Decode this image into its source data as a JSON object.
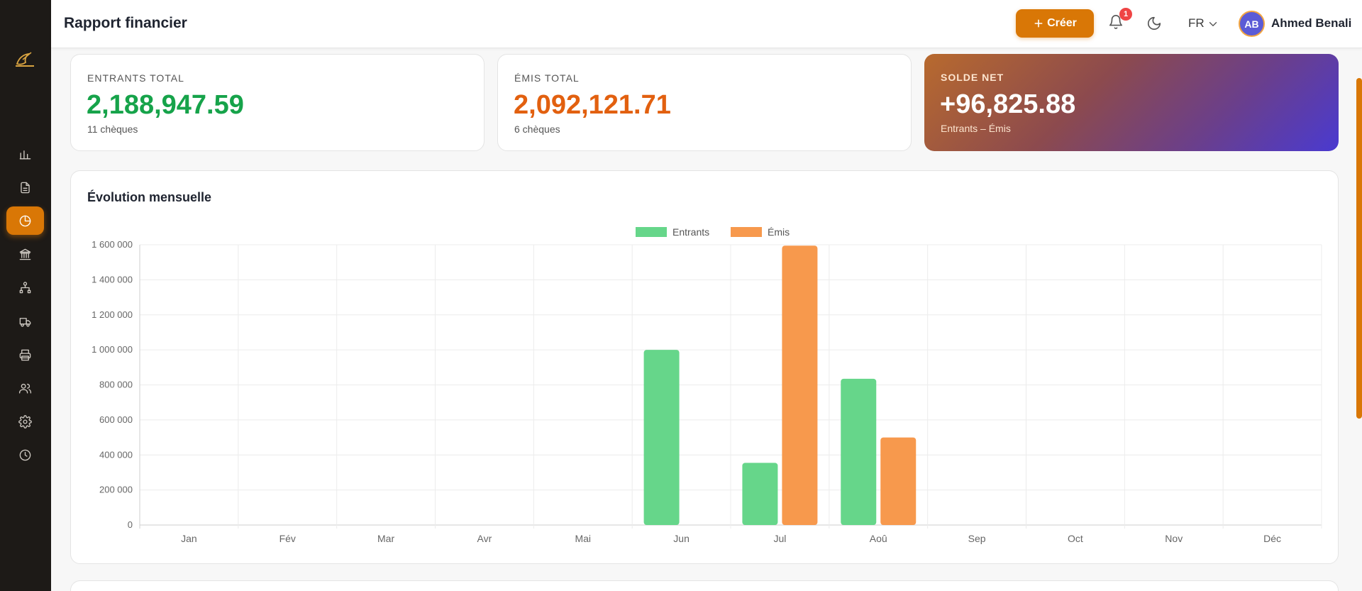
{
  "header": {
    "title": "Rapport financier",
    "create_label": "+ Créer",
    "notif_count": "1",
    "language": "FR",
    "user_initials": "AB",
    "user_name": "Ahmed Benali"
  },
  "sidebar": {
    "items": [
      {
        "icon": "bar-chart-icon",
        "active": false
      },
      {
        "icon": "document-icon",
        "active": false
      },
      {
        "icon": "pie-chart-icon",
        "active": true
      },
      {
        "icon": "bank-icon",
        "active": false
      },
      {
        "icon": "network-icon",
        "active": false
      },
      {
        "icon": "truck-icon",
        "active": false
      },
      {
        "icon": "printer-icon",
        "active": false
      },
      {
        "icon": "users-icon",
        "active": false
      },
      {
        "icon": "settings-icon",
        "active": false
      },
      {
        "icon": "clock-icon",
        "active": false
      }
    ]
  },
  "stats": {
    "incoming": {
      "label": "ENTRANTS TOTAL",
      "value": "2,188,947.59",
      "sub": "11 chèques"
    },
    "issued": {
      "label": "ÉMIS TOTAL",
      "value": "2,092,121.71",
      "sub": "6 chèques"
    },
    "net": {
      "label": "SOLDE NET",
      "value": "+96,825.88",
      "sub": "Entrants – Émis"
    }
  },
  "colors": {
    "accent": "#d97706",
    "incoming": "#66d68a",
    "issued": "#f7994d",
    "positive_text": "#16a34a",
    "negative_text": "#e2600f"
  },
  "chart_data": {
    "type": "bar",
    "title": "Évolution mensuelle",
    "categories": [
      "Jan",
      "Fév",
      "Mar",
      "Avr",
      "Mai",
      "Jun",
      "Jul",
      "Aoû",
      "Sep",
      "Oct",
      "Nov",
      "Déc"
    ],
    "series": [
      {
        "name": "Entrants",
        "color": "#66d68a",
        "values": [
          0,
          0,
          0,
          0,
          0,
          1000000,
          355000,
          835000,
          0,
          0,
          0,
          0
        ]
      },
      {
        "name": "Émis",
        "color": "#f7994d",
        "values": [
          0,
          0,
          0,
          0,
          0,
          0,
          1595000,
          500000,
          0,
          0,
          0,
          0
        ]
      }
    ],
    "ylim": [
      0,
      1600000
    ],
    "yticks": [
      0,
      200000,
      400000,
      600000,
      800000,
      1000000,
      1200000,
      1400000,
      1600000
    ],
    "ytick_labels": [
      "0",
      "200 000",
      "400 000",
      "600 000",
      "800 000",
      "1 000 000",
      "1 200 000",
      "1 400 000",
      "1 600 000"
    ],
    "xlabel": "",
    "ylabel": "",
    "grid": true,
    "legend": "top-center"
  }
}
